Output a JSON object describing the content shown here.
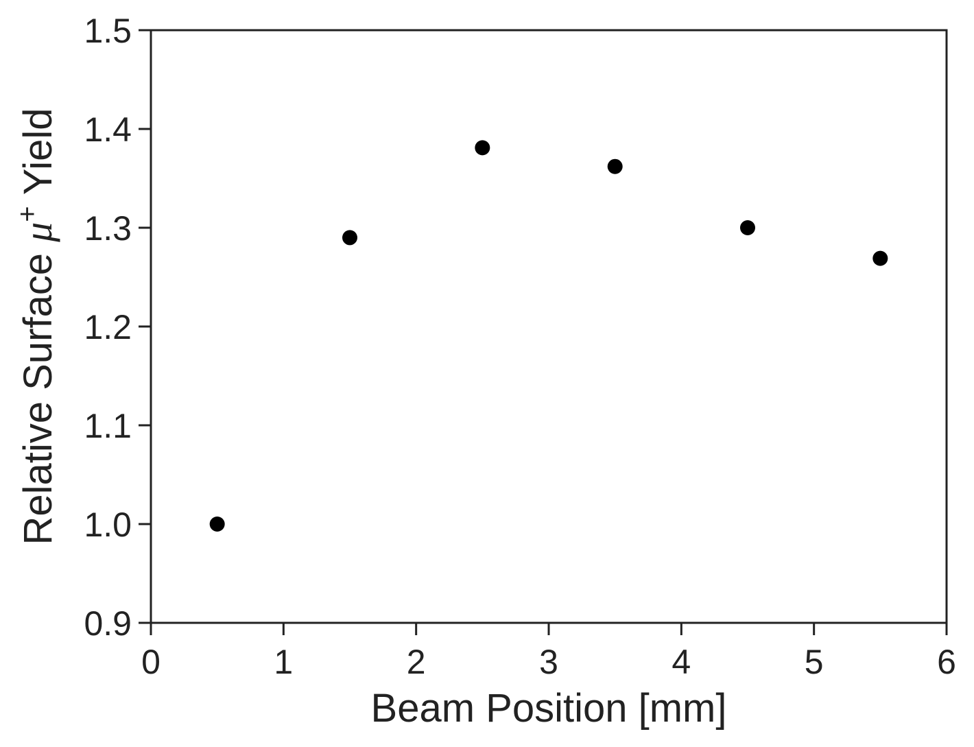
{
  "chart_data": {
    "type": "scatter",
    "title": "",
    "xlabel": "Beam Position [mm]",
    "ylabel": {
      "prefix": "Relative Surface ",
      "symbol": "μ",
      "superscript": "+",
      "suffix": " Yield"
    },
    "xlim": [
      0,
      6
    ],
    "ylim": [
      0.9,
      1.5
    ],
    "xticks": [
      "0",
      "1",
      "2",
      "3",
      "4",
      "5",
      "6"
    ],
    "yticks": [
      "0.9",
      "1.0",
      "1.1",
      "1.2",
      "1.3",
      "1.4",
      "1.5"
    ],
    "grid": false,
    "legend": "none",
    "marker_color": "#000000",
    "axis_color": "#222222",
    "series": [
      {
        "x": [
          0.5,
          1.5,
          2.5,
          3.5,
          4.5,
          5.5
        ],
        "y": [
          1.0,
          1.29,
          1.381,
          1.362,
          1.3,
          1.269
        ]
      }
    ]
  }
}
